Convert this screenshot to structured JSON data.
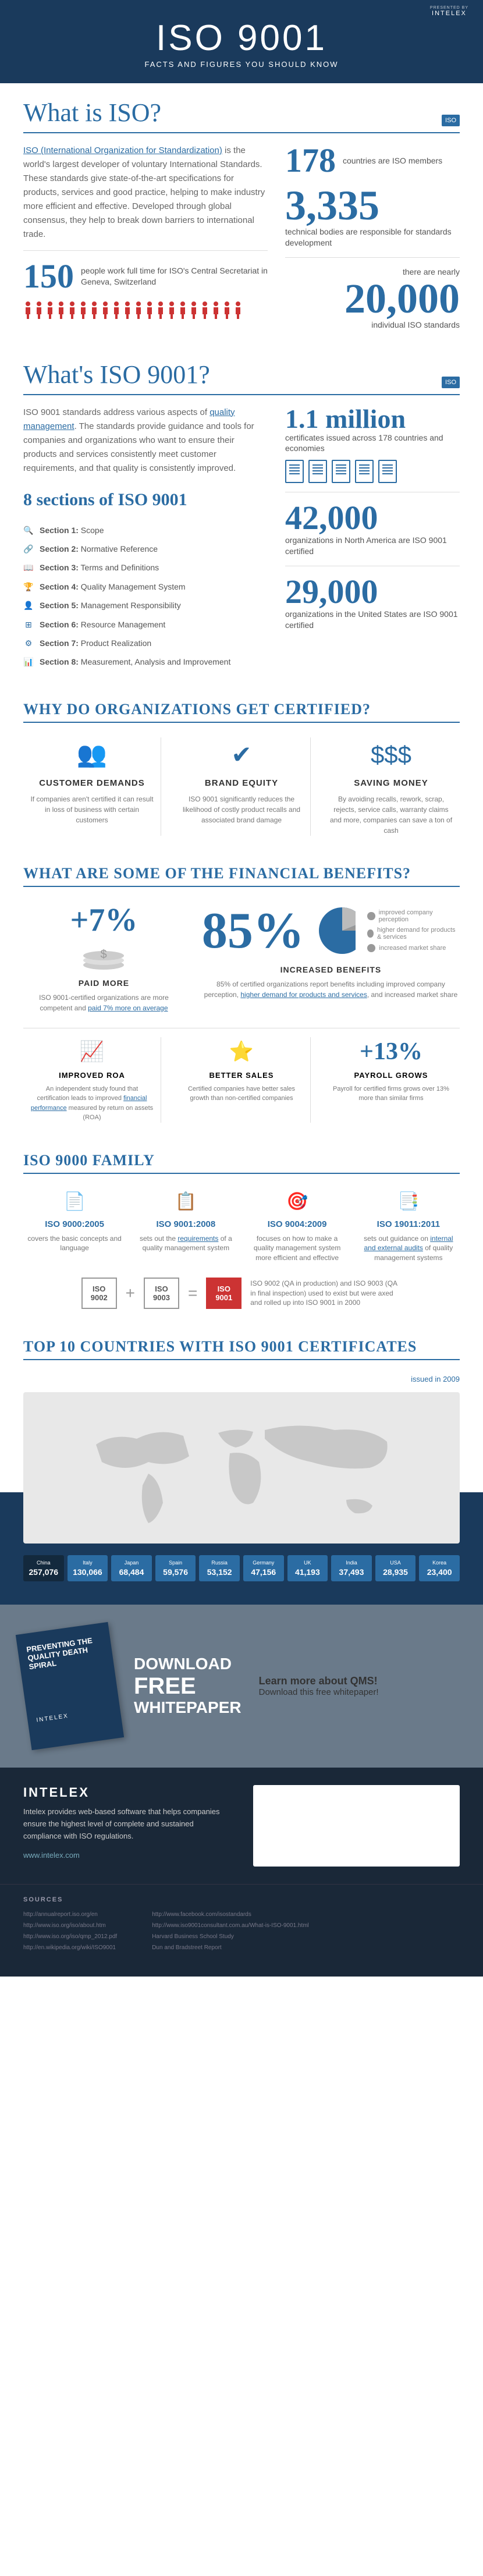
{
  "brand": {
    "presented": "PRESENTED BY",
    "name": "INTELEX"
  },
  "header": {
    "title": "ISO 9001",
    "sub": "FACTS AND FIGURES YOU SHOULD KNOW"
  },
  "what_iso": {
    "title": "What is ISO?",
    "badge": "ISO",
    "body1": "ISO (International Organization for Standardization)",
    "body2": " is the world's largest developer of voluntary International Standards. These standards give state-of-the-art specifications for products, services and good practice, helping to make industry more efficient and effective. Developed through global consensus, they help to break down barriers to international trade.",
    "stat1_num": "178",
    "stat1_txt": "countries are ISO members",
    "stat2_num": "3,335",
    "stat2_txt": "technical bodies are responsible for standards development",
    "stat3_num": "150",
    "stat3_txt": "people work full time for ISO's Central Secretariat in Geneva, Switzerland",
    "stat4_pre": "there are nearly",
    "stat4_num": "20,000",
    "stat4_txt": "individual ISO standards"
  },
  "what_9001": {
    "title": "What's ISO 9001?",
    "badge": "ISO",
    "body1": "ISO 9001 standards address various aspects of ",
    "body1_link": "quality management",
    "body2": ". The standards provide guidance and tools for companies and organizations who want to ensure their products and services consistently meet customer requirements, and that quality is consistently improved.",
    "sections_title": "8 sections of ISO 9001",
    "sections": [
      {
        "icon": "🔍",
        "label": "Section 1: Scope"
      },
      {
        "icon": "🔗",
        "label": "Section 2: Normative Reference"
      },
      {
        "icon": "📖",
        "label": "Section 3: Terms and Definitions"
      },
      {
        "icon": "🏆",
        "label": "Section 4: Quality Management System"
      },
      {
        "icon": "👤",
        "label": "Section 5: Management Responsibility"
      },
      {
        "icon": "⊞",
        "label": "Section 6: Resource Management"
      },
      {
        "icon": "⚙",
        "label": "Section 7: Product Realization"
      },
      {
        "icon": "📊",
        "label": "Section 8: Measurement, Analysis and Improvement"
      }
    ],
    "r1_num": "1.1 million",
    "r1_txt": "certificates issued across 178 countries and economies",
    "r2_num": "42,000",
    "r2_txt": "organizations in North America are ISO 9001 certified",
    "r3_num": "29,000",
    "r3_txt": "organizations in the United States are ISO 9001 certified"
  },
  "why": {
    "title": "WHY DO ORGANIZATIONS GET CERTIFIED?",
    "items": [
      {
        "icon": "👥",
        "h": "CUSTOMER DEMANDS",
        "p": "If companies aren't certified it can result in loss of business with certain customers"
      },
      {
        "icon": "✔",
        "h": "BRAND EQUITY",
        "p": "ISO 9001 significantly reduces the likelihood of costly product recalls and associated brand damage"
      },
      {
        "icon": "$$$",
        "h": "SAVING MONEY",
        "p": "By avoiding recalls, rework, scrap, rejects, service calls, warranty claims and more, companies can save a ton of cash"
      }
    ]
  },
  "fin": {
    "title": "WHAT ARE SOME OF THE FINANCIAL BENEFITS?",
    "paid_pct": "+7%",
    "paid_h": "PAID MORE",
    "paid_p1": "ISO 9001-certified organizations are more competent and ",
    "paid_link": "paid 7% more on average",
    "inc_pct": "85%",
    "inc_h": "INCREASED BENEFITS",
    "inc_p1": "85% of certified organizations report benefits including improved company perception, ",
    "inc_link": "higher demand for products and services",
    "inc_p2": ", and increased market share",
    "legend": [
      "improved company perception",
      "higher demand for products & services",
      "increased market share"
    ],
    "bottom": [
      {
        "icon": "📈",
        "h": "IMPROVED ROA",
        "p1": "An independent study found that certification leads to improved ",
        "link": "financial performance",
        "p2": " measured by return on assets (ROA)"
      },
      {
        "icon": "⭐",
        "h": "BETTER SALES",
        "p1": "Certified companies have better sales growth than non-certified companies",
        "link": "",
        "p2": ""
      },
      {
        "icon": "+13%",
        "h": "PAYROLL GROWS",
        "p1": "Payroll for certified firms grows over 13% more than similar firms",
        "link": "",
        "p2": ""
      }
    ]
  },
  "fam": {
    "title": "ISO 9000 FAMILY",
    "items": [
      {
        "icon": "📄",
        "h": "ISO 9000:2005",
        "p": "covers the basic concepts and language"
      },
      {
        "icon": "📋",
        "h": "ISO 9001:2008",
        "p1": "sets out the ",
        "link": "requirements",
        "p2": " of a quality management system"
      },
      {
        "icon": "🎯",
        "h": "ISO 9004:2009",
        "p": "focuses on how to make a quality management system more efficient and effective"
      },
      {
        "icon": "📑",
        "h": "ISO 19011:2011",
        "p1": "sets out guidance on ",
        "link": "internal and external audits",
        "p2": " of quality management systems"
      }
    ],
    "eq": {
      "a": "ISO\n9002",
      "b": "ISO\n9003",
      "c": "ISO\n9001",
      "txt": "ISO 9002 (QA in production) and ISO 9003 (QA in final inspection) used to exist but were axed and rolled up into ISO 9001 in 2000"
    }
  },
  "top": {
    "title": "TOP 10 COUNTRIES WITH ISO 9001 CERTIFICATES",
    "issued": "issued in 2009",
    "map_placeholder": "World Map",
    "countries": [
      {
        "name": "China",
        "val": "257,076"
      },
      {
        "name": "Italy",
        "val": "130,066"
      },
      {
        "name": "Japan",
        "val": "68,484"
      },
      {
        "name": "Spain",
        "val": "59,576"
      },
      {
        "name": "Russia",
        "val": "53,152"
      },
      {
        "name": "Germany",
        "val": "47,156"
      },
      {
        "name": "UK",
        "val": "41,193"
      },
      {
        "name": "India",
        "val": "37,493"
      },
      {
        "name": "USA",
        "val": "28,935"
      },
      {
        "name": "Korea",
        "val": "23,400"
      }
    ]
  },
  "cta": {
    "book_title": "PREVENTING THE QUALITY DEATH SPIRAL",
    "book_brand": "INTELEX",
    "dl1": "DOWNLOAD",
    "dl2": "FREE",
    "dl3": "WHITEPAPER",
    "learn_h": "Learn more about QMS!",
    "learn_p": "Download this free whitepaper!"
  },
  "footer": {
    "brand": "INTELEX",
    "desc": "Intelex provides web-based software that helps companies ensure the highest level of complete and sustained compliance with ISO regulations.",
    "url": "www.intelex.com"
  },
  "sources": {
    "title": "SOURCES",
    "left": [
      "http://annualreport.iso.org/en",
      "http://www.iso.org/iso/about.htm",
      "http://www.iso.org/iso/qmp_2012.pdf",
      "http://en.wikipedia.org/wiki/ISO9001"
    ],
    "right": [
      "http://www.facebook.com/isostandards",
      "http://www.iso9001consultant.com.au/What-is-ISO-9001.html",
      "Harvard Business School Study",
      "Dun and Bradstreet Report"
    ]
  },
  "colors": {
    "primary": "#2b6ca3",
    "dark": "#1a3a5c",
    "text": "#666"
  }
}
